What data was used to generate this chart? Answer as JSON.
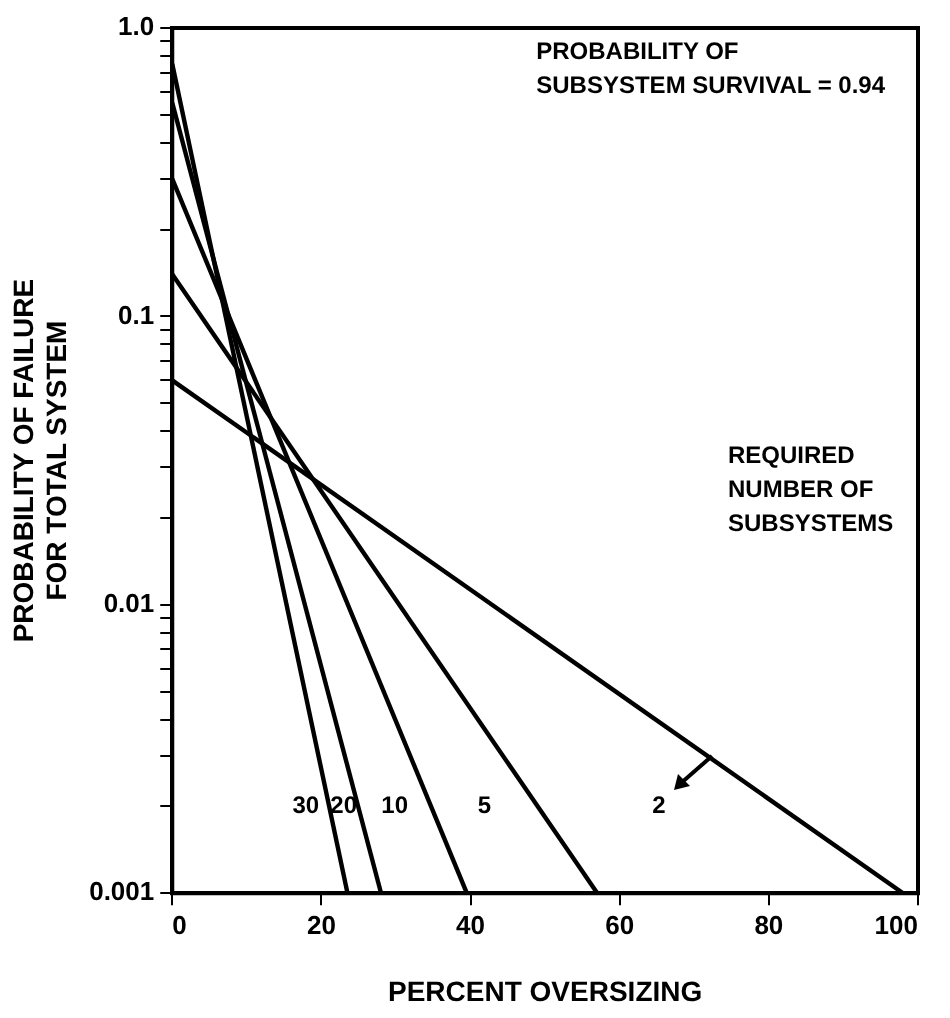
{
  "chart_data": {
    "type": "line",
    "xlabel": "PERCENT OVERSIZING",
    "ylabel": "PROBABILITY OF FAILURE\nFOR TOTAL SYSTEM",
    "annotations": [
      "PROBABILITY OF\nSUBSYSTEM SURVIVAL = 0.94",
      "REQUIRED\nNUMBER OF\nSUBSYSTEMS"
    ],
    "log": "y",
    "grid": false,
    "marker": "none",
    "line_style": "solid",
    "xlim": [
      0,
      100
    ],
    "xticks": [
      0,
      20,
      40,
      60,
      80,
      100
    ],
    "ylim": [
      0.001,
      1
    ],
    "yticks": [
      0.001,
      {
        "value": 0.002,
        "label": null
      },
      {
        "value": 0.003,
        "label": null
      },
      {
        "value": 0.004,
        "label": null
      },
      {
        "value": 0.005,
        "label": null
      },
      {
        "value": 0.006,
        "label": null
      },
      {
        "value": 0.007,
        "label": null
      },
      {
        "value": 0.008,
        "label": null
      },
      {
        "value": 0.009,
        "label": null
      },
      0.01,
      {
        "value": 0.02,
        "label": null
      },
      {
        "value": 0.03,
        "label": null
      },
      {
        "value": 0.04,
        "label": null
      },
      {
        "value": 0.05,
        "label": null
      },
      {
        "value": 0.06,
        "label": null
      },
      {
        "value": 0.07,
        "label": null
      },
      {
        "value": 0.08,
        "label": null
      },
      {
        "value": 0.09,
        "label": null
      },
      0.1,
      {
        "value": 0.2,
        "label": null
      },
      {
        "value": 0.3,
        "label": null
      },
      {
        "value": 0.4,
        "label": null
      },
      {
        "value": 0.5,
        "label": null
      },
      {
        "value": 0.6,
        "label": null
      },
      {
        "value": 0.7,
        "label": null
      },
      {
        "value": 0.8,
        "label": null
      },
      {
        "value": 0.9,
        "label": null
      },
      {
        "value": 1,
        "label": "1.0"
      }
    ],
    "series": [
      {
        "name": "30",
        "color": "#000000",
        "x": [
          0,
          23.5
        ],
        "values": [
          0.75,
          0.001
        ]
      },
      {
        "name": "20",
        "color": "#000000",
        "x": [
          0,
          28
        ],
        "values": [
          0.55,
          0.001
        ]
      },
      {
        "name": "10",
        "color": "#000000",
        "x": [
          0,
          39.5
        ],
        "values": [
          0.3,
          0.001
        ]
      },
      {
        "name": "5",
        "color": "#000000",
        "x": [
          0,
          57
        ],
        "values": [
          0.14,
          0.001
        ]
      },
      {
        "name": "2",
        "color": "#000000",
        "x": [
          0,
          98
        ],
        "values": [
          0.06,
          0.001
        ]
      }
    ]
  }
}
